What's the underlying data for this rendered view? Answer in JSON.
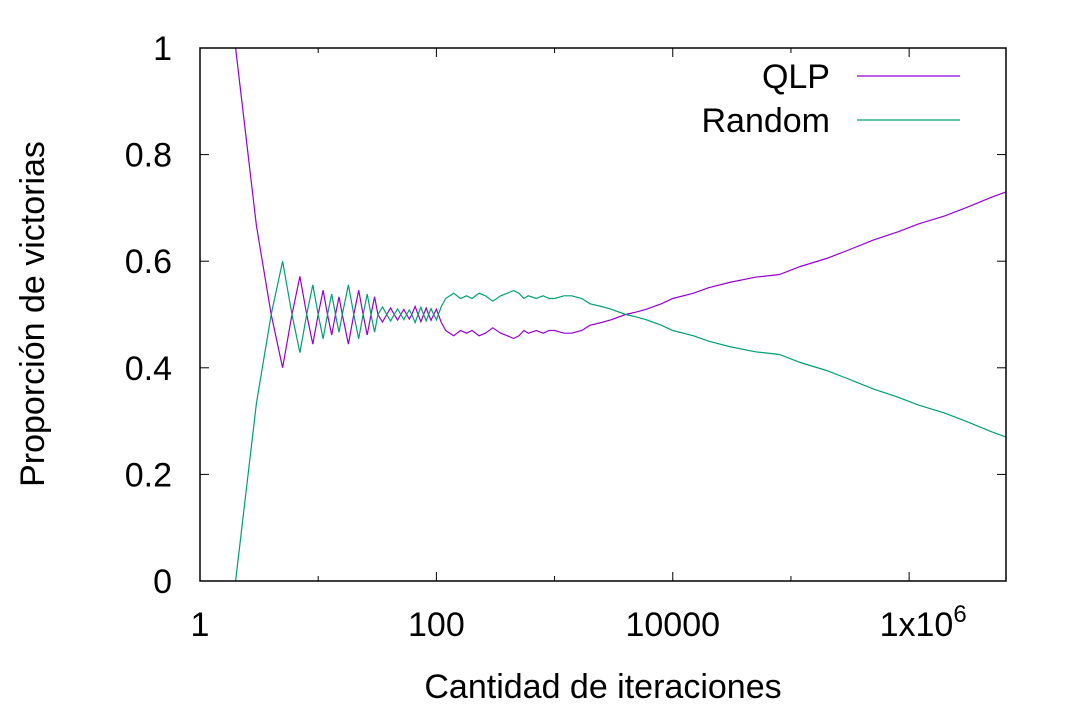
{
  "chart_data": {
    "type": "line",
    "xscale": "log",
    "xlim": [
      1,
      6600000
    ],
    "ylim": [
      0,
      1
    ],
    "xlabel": "Cantidad de iteraciones",
    "ylabel": "Proporción de victorias",
    "x_ticks": [
      {
        "value": 1,
        "label": "1"
      },
      {
        "value": 100,
        "label": "100"
      },
      {
        "value": 10000,
        "label": "10000"
      },
      {
        "value": 1000000,
        "label": "1x10",
        "sup": "6"
      }
    ],
    "y_ticks": [
      {
        "value": 0,
        "label": "0"
      },
      {
        "value": 0.2,
        "label": "0.2"
      },
      {
        "value": 0.4,
        "label": "0.4"
      },
      {
        "value": 0.6,
        "label": "0.6"
      },
      {
        "value": 0.8,
        "label": "0.8"
      },
      {
        "value": 1,
        "label": "1"
      }
    ],
    "grid": false,
    "legend_position": "top-right",
    "series": [
      {
        "name": "QLP",
        "color": "#9400d3",
        "points": [
          [
            2,
            1
          ],
          [
            3,
            0.6667
          ],
          [
            4,
            0.5
          ],
          [
            5,
            0.4
          ],
          [
            6,
            0.5
          ],
          [
            7,
            0.5714
          ],
          [
            8,
            0.5
          ],
          [
            9,
            0.4444
          ],
          [
            10,
            0.5
          ],
          [
            11,
            0.5455
          ],
          [
            12,
            0.5
          ],
          [
            13,
            0.4615
          ],
          [
            14,
            0.5
          ],
          [
            15,
            0.5333
          ],
          [
            16,
            0.5
          ],
          [
            18,
            0.4444
          ],
          [
            20,
            0.5
          ],
          [
            22,
            0.5455
          ],
          [
            24,
            0.5
          ],
          [
            26,
            0.4615
          ],
          [
            28,
            0.5
          ],
          [
            30,
            0.5333
          ],
          [
            32,
            0.5
          ],
          [
            35,
            0.4857
          ],
          [
            38,
            0.5
          ],
          [
            41,
            0.5122
          ],
          [
            44,
            0.5
          ],
          [
            47,
            0.4894
          ],
          [
            50,
            0.5
          ],
          [
            53,
            0.5094
          ],
          [
            56,
            0.5
          ],
          [
            59,
            0.4915
          ],
          [
            62,
            0.5
          ],
          [
            66,
            0.5152
          ],
          [
            70,
            0.5
          ],
          [
            74,
            0.4865
          ],
          [
            78,
            0.5
          ],
          [
            82,
            0.5122
          ],
          [
            86,
            0.5
          ],
          [
            90,
            0.4889
          ],
          [
            95,
            0.5
          ],
          [
            100,
            0.51
          ],
          [
            110,
            0.485
          ],
          [
            120,
            0.47
          ],
          [
            130,
            0.465
          ],
          [
            140,
            0.46
          ],
          [
            160,
            0.47
          ],
          [
            180,
            0.465
          ],
          [
            200,
            0.47
          ],
          [
            230,
            0.46
          ],
          [
            260,
            0.465
          ],
          [
            300,
            0.475
          ],
          [
            350,
            0.465
          ],
          [
            400,
            0.46
          ],
          [
            450,
            0.455
          ],
          [
            500,
            0.46
          ],
          [
            550,
            0.47
          ],
          [
            600,
            0.465
          ],
          [
            700,
            0.47
          ],
          [
            800,
            0.465
          ],
          [
            900,
            0.47
          ],
          [
            1000,
            0.47
          ],
          [
            1200,
            0.465
          ],
          [
            1400,
            0.465
          ],
          [
            1700,
            0.47
          ],
          [
            2000,
            0.48
          ],
          [
            2500,
            0.485
          ],
          [
            3000,
            0.49
          ],
          [
            4000,
            0.5
          ],
          [
            5000,
            0.505
          ],
          [
            6000,
            0.51
          ],
          [
            8000,
            0.52
          ],
          [
            10000,
            0.53
          ],
          [
            15000,
            0.54
          ],
          [
            20000,
            0.55
          ],
          [
            30000,
            0.56
          ],
          [
            50000,
            0.57
          ],
          [
            80000,
            0.575
          ],
          [
            120000,
            0.59
          ],
          [
            200000,
            0.605
          ],
          [
            300000,
            0.62
          ],
          [
            500000,
            0.64
          ],
          [
            800000,
            0.655
          ],
          [
            1200000,
            0.67
          ],
          [
            2000000,
            0.685
          ],
          [
            3000000,
            0.7
          ],
          [
            5000000,
            0.72
          ],
          [
            6600000,
            0.73
          ]
        ]
      },
      {
        "name": "Random",
        "color": "#009e73",
        "points": [
          [
            2,
            0
          ],
          [
            3,
            0.3333
          ],
          [
            4,
            0.5
          ],
          [
            5,
            0.6
          ],
          [
            6,
            0.5
          ],
          [
            7,
            0.4286
          ],
          [
            8,
            0.5
          ],
          [
            9,
            0.5556
          ],
          [
            10,
            0.5
          ],
          [
            11,
            0.4545
          ],
          [
            12,
            0.5
          ],
          [
            13,
            0.5385
          ],
          [
            14,
            0.5
          ],
          [
            15,
            0.4667
          ],
          [
            16,
            0.5
          ],
          [
            18,
            0.5556
          ],
          [
            20,
            0.5
          ],
          [
            22,
            0.4545
          ],
          [
            24,
            0.5
          ],
          [
            26,
            0.5385
          ],
          [
            28,
            0.5
          ],
          [
            30,
            0.4667
          ],
          [
            32,
            0.5
          ],
          [
            35,
            0.5143
          ],
          [
            38,
            0.5
          ],
          [
            41,
            0.4878
          ],
          [
            44,
            0.5
          ],
          [
            47,
            0.5106
          ],
          [
            50,
            0.5
          ],
          [
            53,
            0.4906
          ],
          [
            56,
            0.5
          ],
          [
            59,
            0.5085
          ],
          [
            62,
            0.5
          ],
          [
            66,
            0.4848
          ],
          [
            70,
            0.5
          ],
          [
            74,
            0.5135
          ],
          [
            78,
            0.5
          ],
          [
            82,
            0.4878
          ],
          [
            86,
            0.5
          ],
          [
            90,
            0.5111
          ],
          [
            95,
            0.5
          ],
          [
            100,
            0.49
          ],
          [
            110,
            0.515
          ],
          [
            120,
            0.53
          ],
          [
            130,
            0.535
          ],
          [
            140,
            0.54
          ],
          [
            160,
            0.53
          ],
          [
            180,
            0.535
          ],
          [
            200,
            0.53
          ],
          [
            230,
            0.54
          ],
          [
            260,
            0.535
          ],
          [
            300,
            0.525
          ],
          [
            350,
            0.535
          ],
          [
            400,
            0.54
          ],
          [
            450,
            0.545
          ],
          [
            500,
            0.54
          ],
          [
            550,
            0.53
          ],
          [
            600,
            0.535
          ],
          [
            700,
            0.53
          ],
          [
            800,
            0.535
          ],
          [
            900,
            0.53
          ],
          [
            1000,
            0.53
          ],
          [
            1200,
            0.535
          ],
          [
            1400,
            0.535
          ],
          [
            1700,
            0.53
          ],
          [
            2000,
            0.52
          ],
          [
            2500,
            0.515
          ],
          [
            3000,
            0.51
          ],
          [
            4000,
            0.5
          ],
          [
            5000,
            0.495
          ],
          [
            6000,
            0.49
          ],
          [
            8000,
            0.48
          ],
          [
            10000,
            0.47
          ],
          [
            15000,
            0.46
          ],
          [
            20000,
            0.45
          ],
          [
            30000,
            0.44
          ],
          [
            50000,
            0.43
          ],
          [
            80000,
            0.425
          ],
          [
            120000,
            0.41
          ],
          [
            200000,
            0.395
          ],
          [
            300000,
            0.38
          ],
          [
            500000,
            0.36
          ],
          [
            800000,
            0.345
          ],
          [
            1200000,
            0.33
          ],
          [
            2000000,
            0.315
          ],
          [
            3000000,
            0.3
          ],
          [
            5000000,
            0.28
          ],
          [
            6600000,
            0.27
          ]
        ]
      }
    ]
  }
}
